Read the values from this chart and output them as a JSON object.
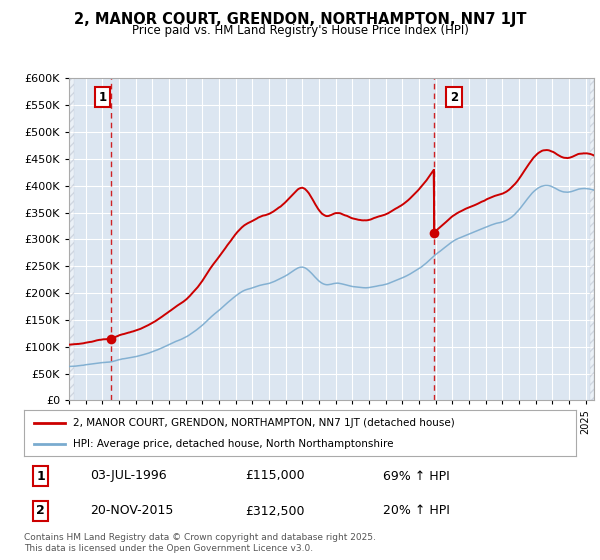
{
  "title": "2, MANOR COURT, GRENDON, NORTHAMPTON, NN7 1JT",
  "subtitle": "Price paid vs. HM Land Registry's House Price Index (HPI)",
  "legend_line1": "2, MANOR COURT, GRENDON, NORTHAMPTON, NN7 1JT (detached house)",
  "legend_line2": "HPI: Average price, detached house, North Northamptonshire",
  "transaction1_date": "03-JUL-1996",
  "transaction1_price": "£115,000",
  "transaction1_hpi": "69% ↑ HPI",
  "transaction2_date": "20-NOV-2015",
  "transaction2_price": "£312,500",
  "transaction2_hpi": "20% ↑ HPI",
  "footnote": "Contains HM Land Registry data © Crown copyright and database right 2025.\nThis data is licensed under the Open Government Licence v3.0.",
  "red_line_color": "#cc0000",
  "blue_line_color": "#7aabcf",
  "dashed_line_color": "#cc0000",
  "background_color": "#ffffff",
  "plot_bg_color": "#dce6f1",
  "grid_color": "#ffffff",
  "ylim": [
    0,
    600000
  ],
  "yticks": [
    0,
    50000,
    100000,
    150000,
    200000,
    250000,
    300000,
    350000,
    400000,
    450000,
    500000,
    550000,
    600000
  ],
  "transaction1_x": 1996.5,
  "transaction1_y": 115000,
  "transaction2_x": 2015.9,
  "transaction2_y": 312500,
  "xmin": 1994.0,
  "xmax": 2025.5,
  "hatch_right_start": 2025.25
}
